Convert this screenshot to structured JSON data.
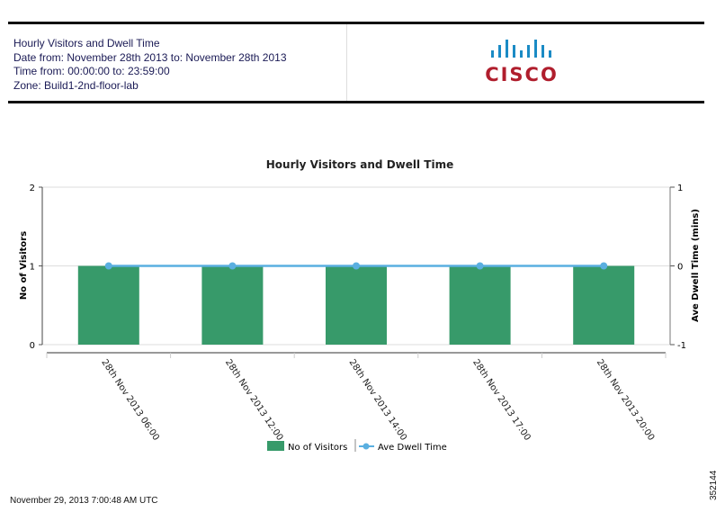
{
  "header": {
    "lines": [
      "Hourly Visitors and Dwell Time",
      "Date from: November 28th 2013 to: November 28th 2013",
      "Time from: 00:00:00 to: 23:59:00",
      "Zone: Build1-2nd-floor-lab"
    ],
    "logo_text": "CISCO"
  },
  "footer": {
    "timestamp": "November 29, 2013 7:00:48 AM UTC",
    "figure_id": "352144"
  },
  "colors": {
    "bar": "#379a6a",
    "line": "#5aafe0",
    "logo": "#b01e2d",
    "logo_bars": "#1b8bc5"
  },
  "chart_data": {
    "type": "bar",
    "title": "Hourly Visitors and Dwell Time",
    "categories": [
      "28th Nov 2013 06:00",
      "28th Nov 2013 12:00",
      "28th Nov 2013 14:00",
      "28th Nov 2013 17:00",
      "28th Nov 2013 20:00"
    ],
    "series": [
      {
        "name": "No of Visitors",
        "type": "bar",
        "axis": "left",
        "values": [
          1,
          1,
          1,
          1,
          1
        ]
      },
      {
        "name": "Ave Dwell Time",
        "type": "line",
        "axis": "right",
        "values": [
          0,
          0,
          0,
          0,
          0
        ]
      }
    ],
    "ylabel": "No of Visitors",
    "ylim": [
      0,
      2
    ],
    "yticks": [
      "0",
      "1",
      "2"
    ],
    "y2label": "Ave Dwell Time (mins)",
    "y2lim": [
      -1,
      1
    ],
    "y2ticks": [
      "-1",
      "0",
      "1"
    ],
    "grid": true,
    "legend": "bottom"
  }
}
